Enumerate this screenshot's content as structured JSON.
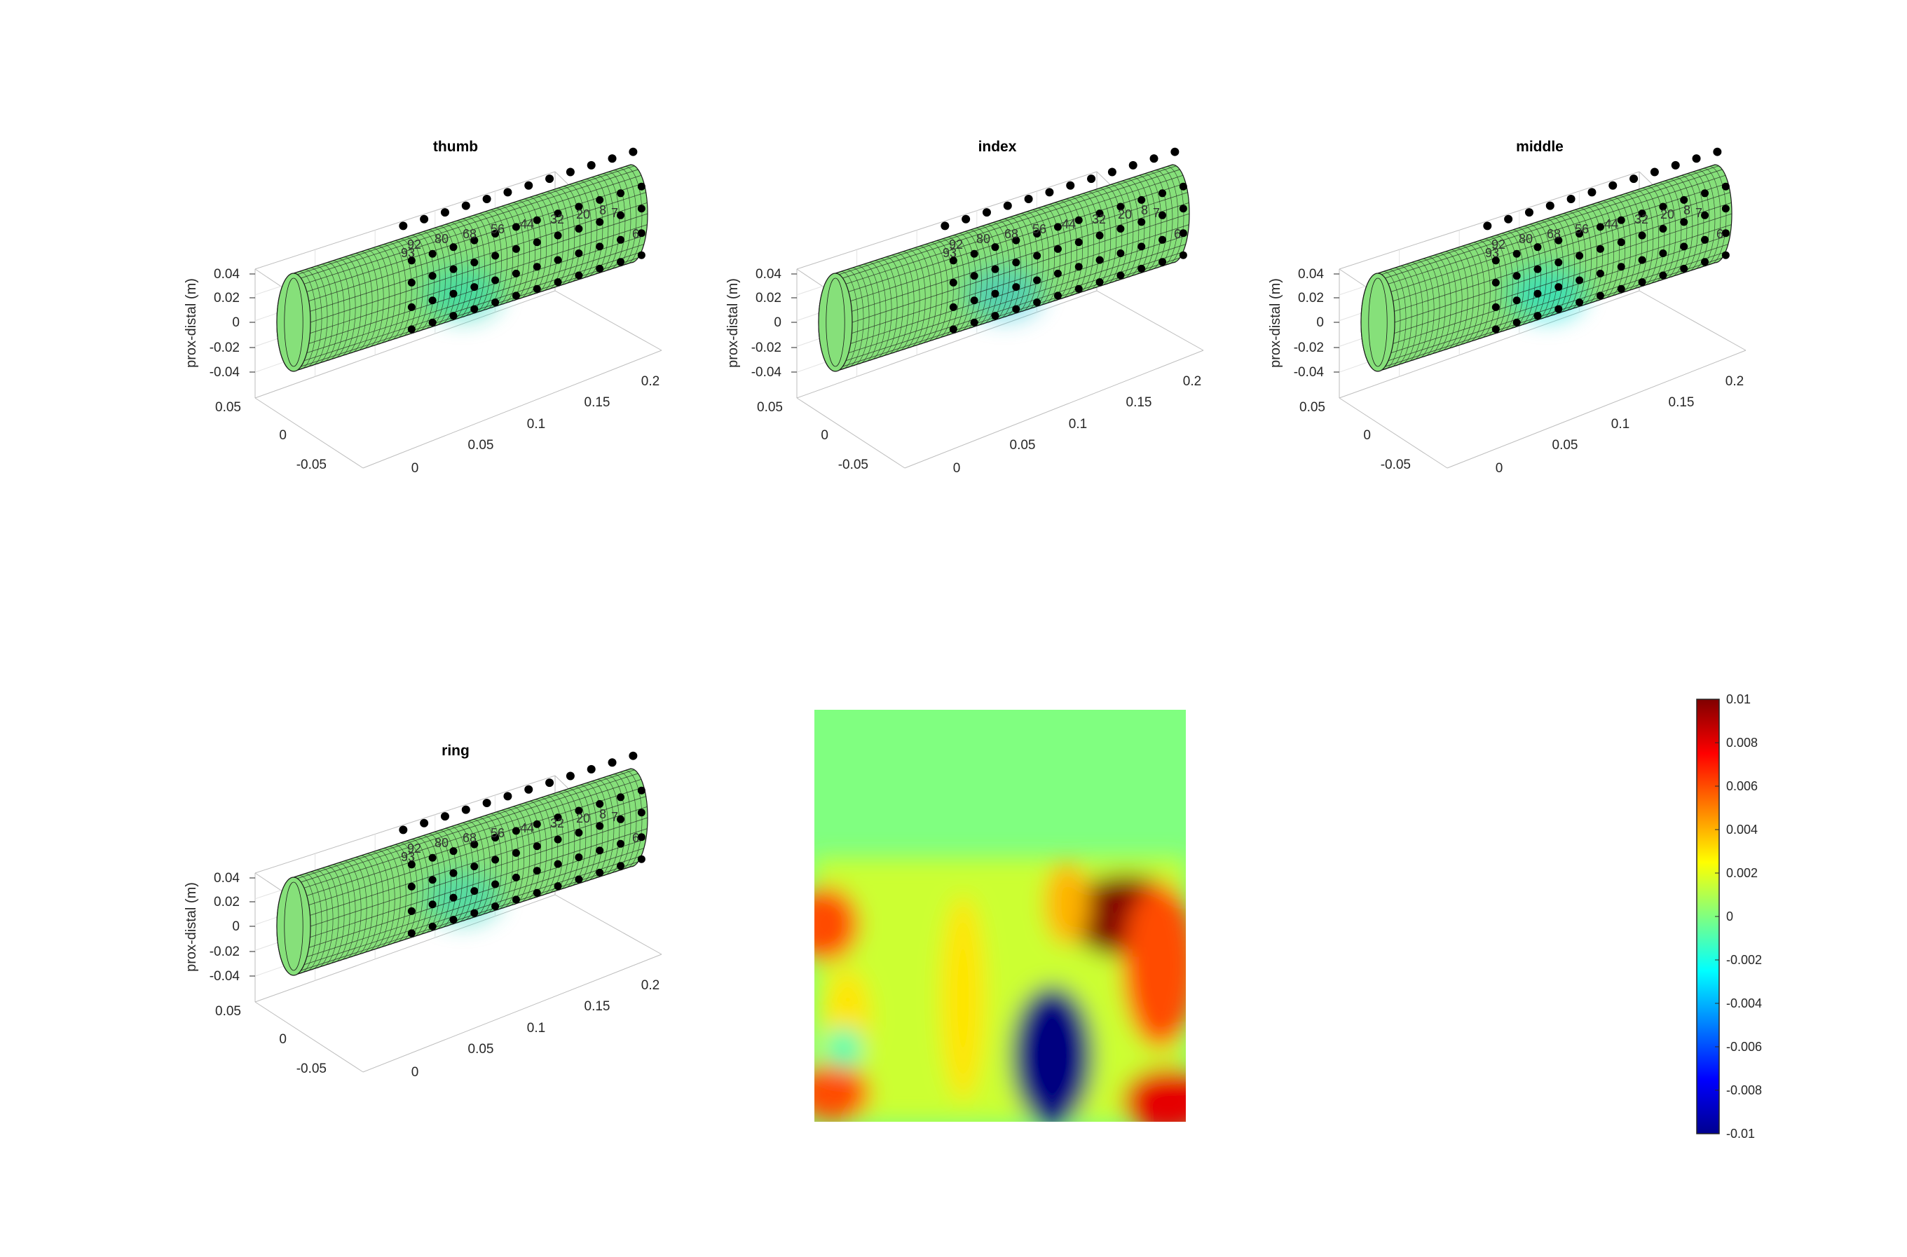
{
  "chart_data": [
    {
      "type": "surface3d",
      "title": "thumb",
      "zlabel": "prox-distal (m)",
      "x_ticks": [
        "0",
        "0.05",
        "0.1",
        "0.15",
        "0.2"
      ],
      "y_ticks": [
        "0.05",
        "0",
        "-0.05"
      ],
      "z_ticks": [
        "0.04",
        "0.02",
        "0",
        "-0.02",
        "-0.04"
      ],
      "electrode_labels": [
        "93",
        "92",
        "80",
        "68",
        "56",
        "44",
        "32",
        "20",
        "8",
        "7",
        "6"
      ],
      "accent_colors": [
        "#1fd8b8"
      ]
    },
    {
      "type": "surface3d",
      "title": "index",
      "zlabel": "prox-distal (m)",
      "x_ticks": [
        "0",
        "0.05",
        "0.1",
        "0.15",
        "0.2"
      ],
      "y_ticks": [
        "0.05",
        "0",
        "-0.05"
      ],
      "z_ticks": [
        "0.04",
        "0.02",
        "0",
        "-0.02",
        "-0.04"
      ],
      "electrode_labels": [
        "93",
        "92",
        "80",
        "68",
        "56",
        "44",
        "32",
        "20",
        "8",
        "7",
        "6"
      ],
      "accent_colors": [
        "#2fc8d8"
      ]
    },
    {
      "type": "surface3d",
      "title": "middle",
      "zlabel": "prox-distal (m)",
      "x_ticks": [
        "0",
        "0.05",
        "0.1",
        "0.15",
        "0.2"
      ],
      "y_ticks": [
        "0.05",
        "0",
        "-0.05"
      ],
      "z_ticks": [
        "0.04",
        "0.02",
        "0",
        "-0.02",
        "-0.04"
      ],
      "electrode_labels": [
        "93",
        "92",
        "80",
        "68",
        "56",
        "44",
        "32",
        "20",
        "8",
        "7",
        "6"
      ],
      "accent_colors": [
        "#10e0d8"
      ]
    },
    {
      "type": "surface3d",
      "title": "ring",
      "zlabel": "prox-distal (m)",
      "x_ticks": [
        "0",
        "0.05",
        "0.1",
        "0.15",
        "0.2"
      ],
      "y_ticks": [
        "0.05",
        "0",
        "-0.05"
      ],
      "z_ticks": [
        "0.04",
        "0.02",
        "0",
        "-0.02",
        "-0.04"
      ],
      "electrode_labels": [
        "93",
        "92",
        "80",
        "68",
        "56",
        "44",
        "32",
        "20",
        "8",
        "7",
        "6"
      ],
      "accent_colors": [
        "#30d8c0"
      ]
    },
    {
      "type": "heatmap",
      "colormap": "jet",
      "clim": [
        -0.01,
        0.01
      ],
      "colorbar_ticks": [
        "0.01",
        "0.008",
        "0.006",
        "0.004",
        "0.002",
        "0",
        "-0.002",
        "-0.004",
        "-0.006",
        "-0.008",
        "-0.01"
      ],
      "background_value": 0,
      "blobs": [
        {
          "cx": 0.84,
          "cy": 0.5,
          "rx": 0.16,
          "ry": 0.1,
          "value": 0.01
        },
        {
          "cx": 0.93,
          "cy": 0.62,
          "rx": 0.1,
          "ry": 0.2,
          "value": 0.006
        },
        {
          "cx": 0.68,
          "cy": 0.47,
          "rx": 0.06,
          "ry": 0.1,
          "value": 0.004
        },
        {
          "cx": 0.03,
          "cy": 0.52,
          "rx": 0.09,
          "ry": 0.09,
          "value": 0.006
        },
        {
          "cx": 0.09,
          "cy": 0.75,
          "rx": 0.06,
          "ry": 0.12,
          "value": 0.003
        },
        {
          "cx": 0.05,
          "cy": 0.93,
          "rx": 0.1,
          "ry": 0.07,
          "value": 0.006
        },
        {
          "cx": 0.4,
          "cy": 0.7,
          "rx": 0.06,
          "ry": 0.25,
          "value": 0.003
        },
        {
          "cx": 0.65,
          "cy": 0.9,
          "rx": 0.09,
          "ry": 0.1,
          "value": 0.003
        },
        {
          "cx": 0.95,
          "cy": 0.95,
          "rx": 0.12,
          "ry": 0.08,
          "value": 0.008
        },
        {
          "cx": 0.64,
          "cy": 0.84,
          "rx": 0.11,
          "ry": 0.17,
          "value": -0.01
        },
        {
          "cx": 0.08,
          "cy": 0.82,
          "rx": 0.05,
          "ry": 0.05,
          "value": -0.001
        }
      ]
    }
  ]
}
